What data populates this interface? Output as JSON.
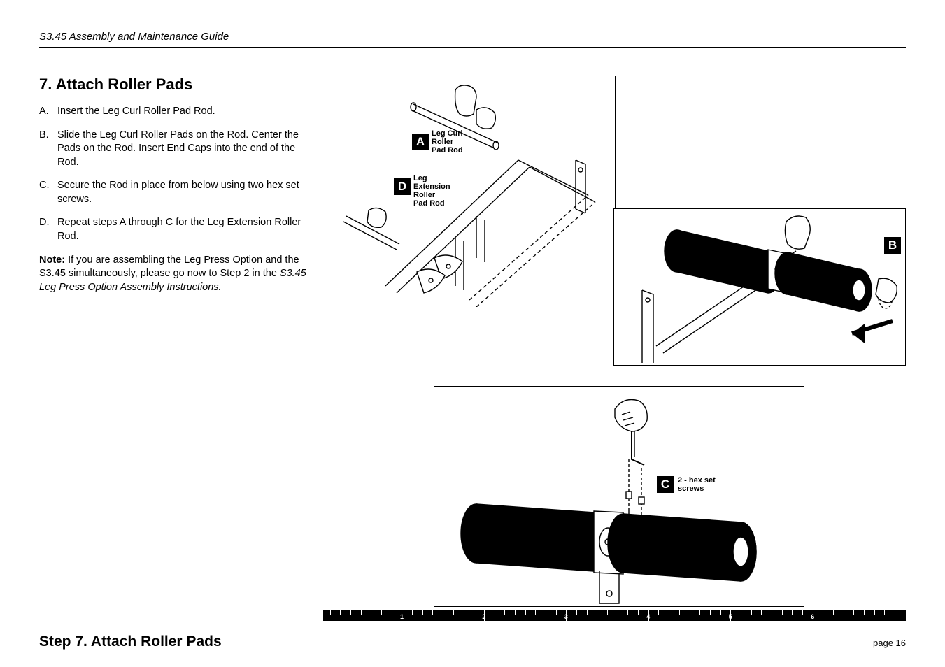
{
  "header": {
    "doc_title": "S3.45 Assembly and Maintenance Guide"
  },
  "section": {
    "title": "7. Attach Roller Pads",
    "steps": [
      {
        "letter": "A.",
        "text": "Insert the Leg Curl Roller Pad Rod."
      },
      {
        "letter": "B.",
        "text": "Slide the Leg Curl Roller Pads on the Rod. Center the Pads on the Rod. Insert End Caps into the end of the Rod."
      },
      {
        "letter": "C.",
        "text": "Secure the Rod in place from below using two hex set screws."
      },
      {
        "letter": "D.",
        "text": "Repeat steps A through C for the Leg Extension Roller Rod."
      }
    ],
    "note": {
      "label": "Note:",
      "text_a": " If you are assembling the Leg Press Option and the S3.45 simultaneously, please go now to Step 2 in the ",
      "text_italic": "S3.45 Leg Press Option Assembly Instructions.",
      "text_b": ""
    }
  },
  "illustrations": {
    "A": {
      "badge": "A",
      "label": "Leg Curl\nRoller\nPad Rod"
    },
    "D": {
      "badge": "D",
      "label": "Leg\nExtension\nRoller\nPad Rod"
    },
    "B": {
      "badge": "B"
    },
    "C": {
      "badge": "C",
      "label": "2 - hex set\nscrews"
    }
  },
  "ruler": {
    "major_labels": [
      "1",
      "2",
      "3",
      "4",
      "5",
      "6"
    ],
    "major_positions_pct": [
      13.5,
      27.6,
      41.7,
      55.8,
      69.9,
      84.0
    ],
    "minor_per_major": 8
  },
  "footer": {
    "left": "Step 7. Attach Roller Pads",
    "right": "page 16"
  },
  "style": {
    "heading_fontsize": 22,
    "body_fontsize": 14.5,
    "badge_bg": "#000000",
    "badge_fg": "#ffffff",
    "rule_color": "#000000",
    "page_bg": "#ffffff"
  }
}
